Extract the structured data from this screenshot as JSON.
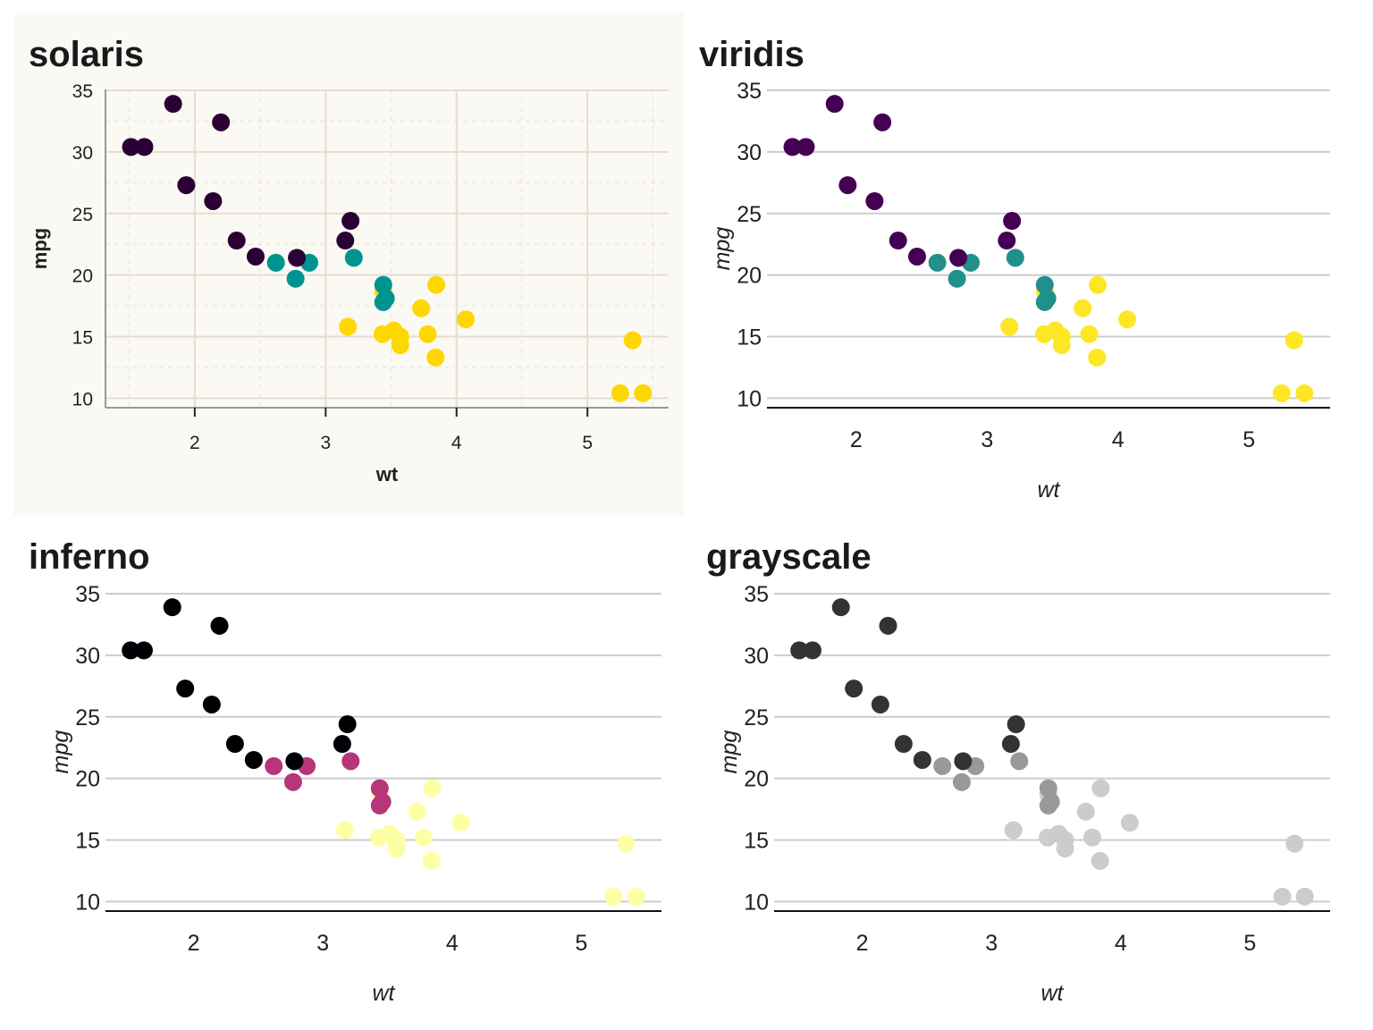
{
  "chart_data": {
    "type": "scatter",
    "x": [
      2.62,
      2.875,
      2.32,
      3.215,
      3.44,
      3.46,
      3.57,
      3.19,
      3.15,
      3.44,
      3.44,
      4.07,
      3.73,
      3.78,
      5.25,
      5.424,
      5.345,
      2.2,
      1.615,
      1.835,
      2.465,
      3.52,
      3.435,
      3.84,
      3.845,
      1.935,
      2.14,
      1.513,
      3.17,
      2.77,
      3.57,
      2.78
    ],
    "y": [
      21.0,
      21.0,
      22.8,
      21.4,
      18.7,
      18.1,
      14.3,
      24.4,
      22.8,
      19.2,
      17.8,
      16.4,
      17.3,
      15.2,
      10.4,
      10.4,
      14.7,
      32.4,
      30.4,
      33.9,
      21.5,
      15.5,
      15.2,
      13.3,
      19.2,
      27.3,
      26.0,
      30.4,
      15.8,
      19.7,
      15.0,
      21.4
    ],
    "group": [
      6,
      6,
      4,
      6,
      8,
      6,
      8,
      4,
      4,
      6,
      6,
      8,
      8,
      8,
      8,
      8,
      8,
      4,
      4,
      4,
      4,
      8,
      8,
      8,
      8,
      4,
      4,
      4,
      8,
      6,
      8,
      4
    ],
    "xlabel": "wt",
    "ylabel": "mpg",
    "xlim": [
      1.318,
      5.62
    ],
    "ylim": [
      9.225,
      35.075
    ],
    "xticks": [
      2,
      3,
      4,
      5
    ],
    "yticks": [
      10,
      15,
      20,
      25,
      30,
      35
    ],
    "legend": "none",
    "panels": [
      {
        "title": "solaris",
        "colors": {
          "4": "#2a0134",
          "6": "#009490",
          "8": "#ffd700"
        },
        "grid": "major-minor-both",
        "background": "#fbf9f4"
      },
      {
        "title": "viridis",
        "colors": {
          "4": "#440154",
          "6": "#21908c",
          "8": "#fde725"
        },
        "grid": "horizontal"
      },
      {
        "title": "inferno",
        "colors": {
          "4": "#000004",
          "6": "#b63679",
          "8": "#fcffa4"
        },
        "grid": "horizontal"
      },
      {
        "title": "grayscale",
        "colors": {
          "4": "#333333",
          "6": "#999999",
          "8": "#cccccc"
        },
        "grid": "horizontal"
      }
    ]
  }
}
